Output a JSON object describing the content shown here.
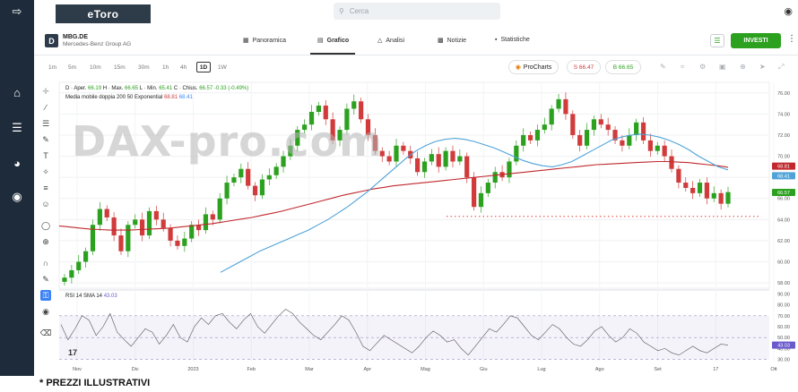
{
  "header": {
    "logo": "eToro",
    "search_placeholder": "Cerca"
  },
  "instrument": {
    "symbol": "MBG.DE",
    "name": "Mercedes-Benz Group AG",
    "logo_letter": "D",
    "tabs": [
      {
        "label": "Panoramica",
        "icon": "overview-icon"
      },
      {
        "label": "Grafico",
        "icon": "chart-icon"
      },
      {
        "label": "Analisi",
        "icon": "flask-icon"
      },
      {
        "label": "Notizie",
        "icon": "news-icon"
      },
      {
        "label": "Statistiche",
        "icon": "stats-icon"
      }
    ],
    "invest_label": "INVESTI"
  },
  "timeframes": [
    "1m",
    "5m",
    "10m",
    "15m",
    "30m",
    "1h",
    "4h",
    "1D",
    "1W"
  ],
  "active_timeframe": "1D",
  "prochart_label": "ProCharts",
  "sell_price": "S 66.47",
  "buy_price": "B 66.65",
  "legend": {
    "ohlc_prefix": "D · Aper.",
    "open": "66.19",
    "high_label": "H · Max.",
    "high": "66.65",
    "low_label": "L · Min.",
    "low": "65.41",
    "close_label": "C · Chius.",
    "close": "66.57",
    "change": "-0.33 (-0.49%)",
    "ma_label": "Media mobile doppia 200 50 Exponential",
    "ma_red": "68.81",
    "ma_blue": "68.41",
    "rsi_label": "RSI 14 SMA 14",
    "rsi_value": "43.03"
  },
  "watermark": "DAX-pro.com",
  "footer_note": "* PREZZI ILLUSTRATIVI",
  "colors": {
    "up": "#2ba11f",
    "down": "#d13b3b",
    "ma200": "#c0282d",
    "ma50": "#4fa3d9",
    "rsi": "#555555",
    "sidebar": "#1e2b3a"
  },
  "chart_data": {
    "type": "line",
    "price_axis": {
      "ticks": [
        "76.00",
        "74.00",
        "72.00",
        "70.00",
        "68.00",
        "66.00",
        "64.00",
        "62.00",
        "60.00",
        "58.00"
      ],
      "ylim": [
        57.5,
        77
      ]
    },
    "price_badges": [
      "68.81",
      "68.41",
      "66.57"
    ],
    "x_ticks": [
      "Nov",
      "Dic",
      "2023",
      "Feb",
      "Mar",
      "Apr",
      "Mag",
      "Giu",
      "Lug",
      "Ago",
      "Set",
      "17",
      "Ott"
    ],
    "rsi_axis": {
      "ticks": [
        "90.00",
        "80.00",
        "70.00",
        "60.00",
        "50.00",
        "40.00",
        "30.00"
      ],
      "badge": "43.03",
      "ylim": [
        28,
        92
      ]
    },
    "support_level": 64.3,
    "price_series": [
      58.5,
      59.2,
      60.0,
      61.0,
      63.5,
      65.0,
      64.2,
      62.5,
      61.0,
      63.5,
      64.0,
      62.5,
      64.8,
      64.0,
      63.2,
      62.0,
      61.5,
      62.2,
      63.5,
      63.0,
      64.5,
      64.0,
      66.0,
      67.5,
      68.0,
      68.8,
      67.2,
      66.3,
      67.8,
      68.2,
      69.0,
      70.0,
      71.0,
      72.5,
      73.0,
      74.2,
      74.8,
      73.5,
      71.5,
      72.5,
      74.5,
      75.2,
      73.5,
      72.0,
      70.5,
      70.0,
      69.5,
      71.0,
      70.5,
      69.8,
      68.5,
      69.5,
      70.2,
      69.0,
      70.5,
      69.5,
      70.0,
      68.0,
      65.2,
      66.5,
      67.5,
      68.5,
      68.0,
      69.5,
      71.0,
      72.0,
      71.5,
      72.5,
      73.0,
      74.5,
      75.4,
      74.0,
      72.0,
      71.0,
      72.5,
      73.5,
      73.0,
      72.5,
      71.5,
      71.0,
      72.0,
      73.2,
      71.5,
      70.5,
      71.0,
      70.0,
      68.8,
      67.5,
      67.0,
      66.5,
      67.5,
      66.0,
      66.5,
      65.5,
      66.6
    ],
    "ma200_series": [
      63.4,
      63.3,
      63.2,
      63.1,
      63.05,
      63.0,
      63.0,
      63.0,
      63.05,
      63.1,
      63.15,
      63.2,
      63.3,
      63.4,
      63.5,
      63.6,
      63.75,
      63.9,
      64.05,
      64.2,
      64.4,
      64.6,
      64.8,
      65.05,
      65.3,
      65.55,
      65.8,
      66.05,
      66.3,
      66.5,
      66.7,
      66.9,
      67.05,
      67.2,
      67.3,
      67.4,
      67.5,
      67.6,
      67.7,
      67.8,
      67.9,
      68.0,
      68.1,
      68.2,
      68.3,
      68.4,
      68.5,
      68.6,
      68.7,
      68.8,
      68.9,
      69.0,
      69.1,
      69.2,
      69.25,
      69.3,
      69.35,
      69.4,
      69.45,
      69.5,
      69.5,
      69.45,
      69.4,
      69.3,
      69.2,
      69.1,
      68.95
    ],
    "ma50_series": [
      59.0,
      59.5,
      60.0,
      60.5,
      61.0,
      61.4,
      61.8,
      62.2,
      62.6,
      63.0,
      63.5,
      64.0,
      64.6,
      65.2,
      65.9,
      66.6,
      67.4,
      68.2,
      69.0,
      69.8,
      70.5,
      71.0,
      71.4,
      71.6,
      71.7,
      71.6,
      71.4,
      71.1,
      70.8,
      70.4,
      70.0,
      69.6,
      69.3,
      69.1,
      69.0,
      69.2,
      69.5,
      70.0,
      70.5,
      71.0,
      71.5,
      71.8,
      72.0,
      72.1,
      72.0,
      71.8,
      71.5,
      71.1,
      70.6,
      70.0,
      69.5,
      69.0,
      68.7
    ],
    "rsi_series": [
      62,
      48,
      58,
      70,
      66,
      52,
      60,
      72,
      55,
      48,
      42,
      50,
      58,
      55,
      44,
      52,
      62,
      50,
      46,
      60,
      68,
      62,
      70,
      72,
      64,
      58,
      66,
      72,
      60,
      54,
      62,
      70,
      76,
      72,
      64,
      58,
      52,
      48,
      55,
      62,
      70,
      66,
      55,
      42,
      38,
      45,
      52,
      48,
      44,
      40,
      36,
      42,
      50,
      56,
      52,
      46,
      48,
      40,
      34,
      42,
      50,
      58,
      55,
      62,
      70,
      68,
      60,
      52,
      48,
      55,
      62,
      58,
      50,
      44,
      42,
      48,
      56,
      60,
      52,
      46,
      50,
      58,
      54,
      46,
      42,
      38,
      40,
      36,
      34,
      38,
      42,
      38,
      36,
      40,
      44,
      43
    ]
  }
}
